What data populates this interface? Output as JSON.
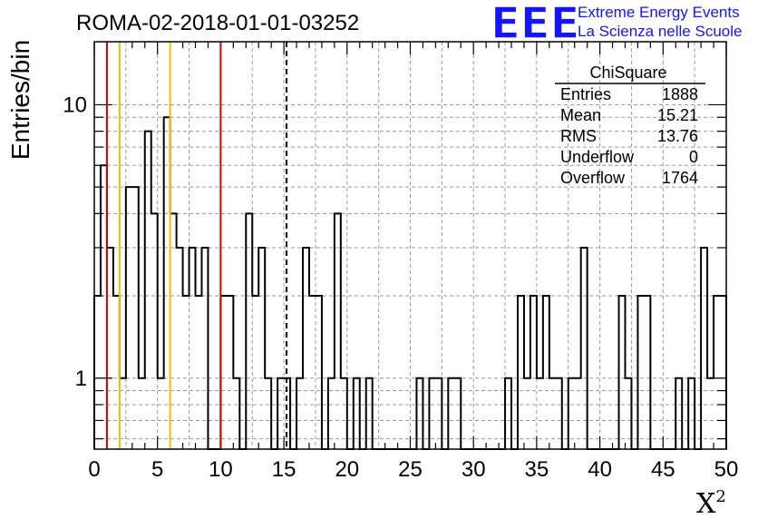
{
  "run_title": "ROMA-02-2018-01-01-03252",
  "logo": {
    "mark": "EEE",
    "line1": "Extreme Energy Events",
    "line2": "La Scienza nelle Scuole"
  },
  "stats_box": {
    "title": "ChiSquare",
    "rows": [
      {
        "label": "Entries",
        "value": "1888"
      },
      {
        "label": "Mean",
        "value": "15.21"
      },
      {
        "label": "RMS",
        "value": "13.76"
      },
      {
        "label": "Underflow",
        "value": "0"
      },
      {
        "label": "Overflow",
        "value": "1764"
      }
    ]
  },
  "chart_data": {
    "type": "histogram",
    "title": "ROMA-02-2018-01-01-03252",
    "xlabel": "Χ",
    "xlabel_sup": "2",
    "ylabel": "Entries/bin",
    "xlim": [
      0,
      50
    ],
    "ylim": [
      0.55,
      17
    ],
    "y_scale": "log",
    "bin_width": 0.5,
    "grid": true,
    "x_ticks": [
      0,
      5,
      10,
      15,
      20,
      25,
      30,
      35,
      40,
      45,
      50
    ],
    "y_ticks": [
      1,
      10
    ],
    "values": [
      2,
      6,
      3,
      2,
      1,
      5,
      5,
      1,
      8,
      4,
      1,
      9,
      4,
      3,
      2,
      3,
      2,
      3,
      0,
      0,
      2,
      2,
      1,
      0,
      4,
      2,
      3,
      1,
      0,
      1,
      1,
      0,
      1,
      3,
      2,
      2,
      0,
      1,
      4,
      1,
      0,
      1,
      0,
      1,
      0,
      0,
      0,
      0,
      0,
      0,
      0,
      1,
      0,
      1,
      1,
      0,
      1,
      1,
      0,
      0,
      0,
      0,
      0,
      0,
      0,
      1,
      0,
      2,
      1,
      2,
      1,
      2,
      1,
      1,
      0,
      1,
      1,
      3,
      0,
      0,
      0,
      0,
      0,
      2,
      1,
      0,
      2,
      2,
      0,
      0,
      0,
      0,
      1,
      0,
      1,
      0,
      3,
      1,
      2,
      2
    ],
    "vertical_lines": [
      {
        "x": 1,
        "color": "#d60000",
        "style": "solid"
      },
      {
        "x": 2,
        "color": "#f0c000",
        "style": "solid"
      },
      {
        "x": 6,
        "color": "#f0c000",
        "style": "solid"
      },
      {
        "x": 10,
        "color": "#d60000",
        "style": "solid"
      },
      {
        "x": 15.21,
        "color": "#000000",
        "style": "dashed"
      }
    ]
  }
}
